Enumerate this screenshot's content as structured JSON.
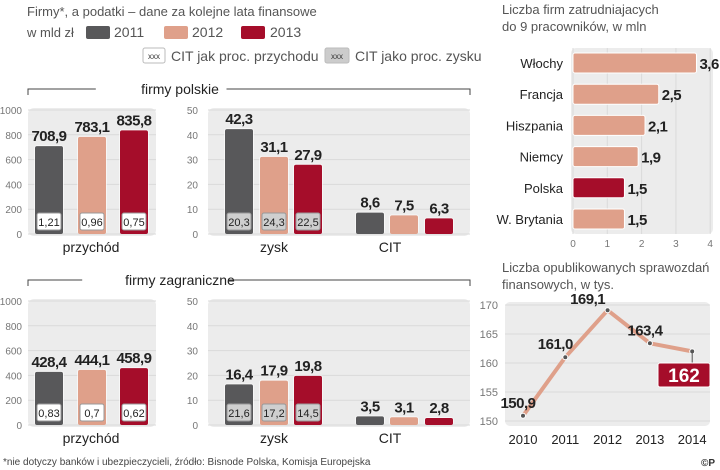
{
  "colors": {
    "y2011": "#58585a",
    "y2012": "#dfa08a",
    "y2013": "#a50d2a",
    "panel": "#ececec",
    "grid": "#dadada"
  },
  "header": {
    "title": "Firmy*, a podatki – dane za kolejne lata finansowe",
    "unit": "w mld zł",
    "legend_years": [
      "2011",
      "2012",
      "2013"
    ],
    "box_sample": "xxx",
    "cit_revenue_label": "CIT jak proc. przychodu",
    "cit_profit_label": "CIT jako proc. zysku"
  },
  "footer": "*nie dotyczy banków i ubezpieczycieli, źródło: Bisnode Polska, Komisja Europejska",
  "copyright": "©P",
  "chart_data": [
    {
      "type": "bar",
      "group": "firmy polskie",
      "title": "firmy polskie",
      "revenue": {
        "category": "przychód",
        "ylim": [
          0,
          1000
        ],
        "ticks": [
          "0",
          "200",
          "400",
          "600",
          "800",
          "1000"
        ],
        "values": [
          708.9,
          783.1,
          835.8
        ],
        "labels": [
          "708,9",
          "783,1",
          "835,8"
        ],
        "cit_pct_revenue": [
          "1,21",
          "0,96",
          "0,75"
        ]
      },
      "profit": {
        "category": "zysk",
        "ylim": [
          0,
          50
        ],
        "ticks": [
          "0",
          "10",
          "20",
          "30",
          "40",
          "50"
        ],
        "values": [
          42.3,
          31.1,
          27.9
        ],
        "labels": [
          "42,3",
          "31,1",
          "27,9"
        ],
        "cit_pct_profit": [
          "20,3",
          "24,3",
          "22,5"
        ]
      },
      "cit": {
        "category": "CIT",
        "values": [
          8.6,
          7.5,
          6.3
        ],
        "labels": [
          "8,6",
          "7,5",
          "6,3"
        ]
      }
    },
    {
      "type": "bar",
      "group": "firmy zagraniczne",
      "title": "firmy zagraniczne",
      "revenue": {
        "category": "przychód",
        "ylim": [
          0,
          1000
        ],
        "ticks": [
          "0",
          "200",
          "400",
          "600",
          "800",
          "1000"
        ],
        "values": [
          428.4,
          444.1,
          458.9
        ],
        "labels": [
          "428,4",
          "444,1",
          "458,9"
        ],
        "cit_pct_revenue": [
          "0,83",
          "0,7",
          "0,62"
        ]
      },
      "profit": {
        "category": "zysk",
        "ylim": [
          0,
          50
        ],
        "ticks": [
          "0",
          "10",
          "20",
          "30",
          "40",
          "50"
        ],
        "values": [
          16.4,
          17.9,
          19.8
        ],
        "labels": [
          "16,4",
          "17,9",
          "19,8"
        ],
        "cit_pct_profit": [
          "21,6",
          "17,2",
          "14,5"
        ]
      },
      "cit": {
        "category": "CIT",
        "values": [
          3.5,
          3.1,
          2.8
        ],
        "labels": [
          "3,5",
          "3,1",
          "2,8"
        ]
      }
    },
    {
      "type": "bar",
      "orientation": "horizontal",
      "title": [
        "Liczba firm zatrudniajacych",
        "do 9 pracowników, w mln"
      ],
      "categories": [
        "Włochy",
        "Francja",
        "Hiszpania",
        "Niemcy",
        "Polska",
        "W. Brytania"
      ],
      "values": [
        3.6,
        2.5,
        2.1,
        1.9,
        1.5,
        1.5
      ],
      "labels": [
        "3,6",
        "2,5",
        "2,1",
        "1,9",
        "1,5",
        "1,5"
      ],
      "highlight": "Polska",
      "xlim": [
        0,
        4
      ],
      "xticks": [
        "0",
        "1",
        "2",
        "3",
        "4"
      ]
    },
    {
      "type": "line",
      "title": [
        "Liczba opublikowanych sprawozdań",
        "finansowych, w tys."
      ],
      "x": [
        "2010",
        "2011",
        "2012",
        "2013",
        "2014"
      ],
      "values": [
        150.9,
        161.0,
        169.1,
        163.4,
        162
      ],
      "labels": [
        "150,9",
        "161,0",
        "169,1",
        "163,4",
        "162"
      ],
      "ylim": [
        150,
        170
      ],
      "yticks": [
        "150",
        "155",
        "160",
        "165",
        "170"
      ]
    }
  ]
}
